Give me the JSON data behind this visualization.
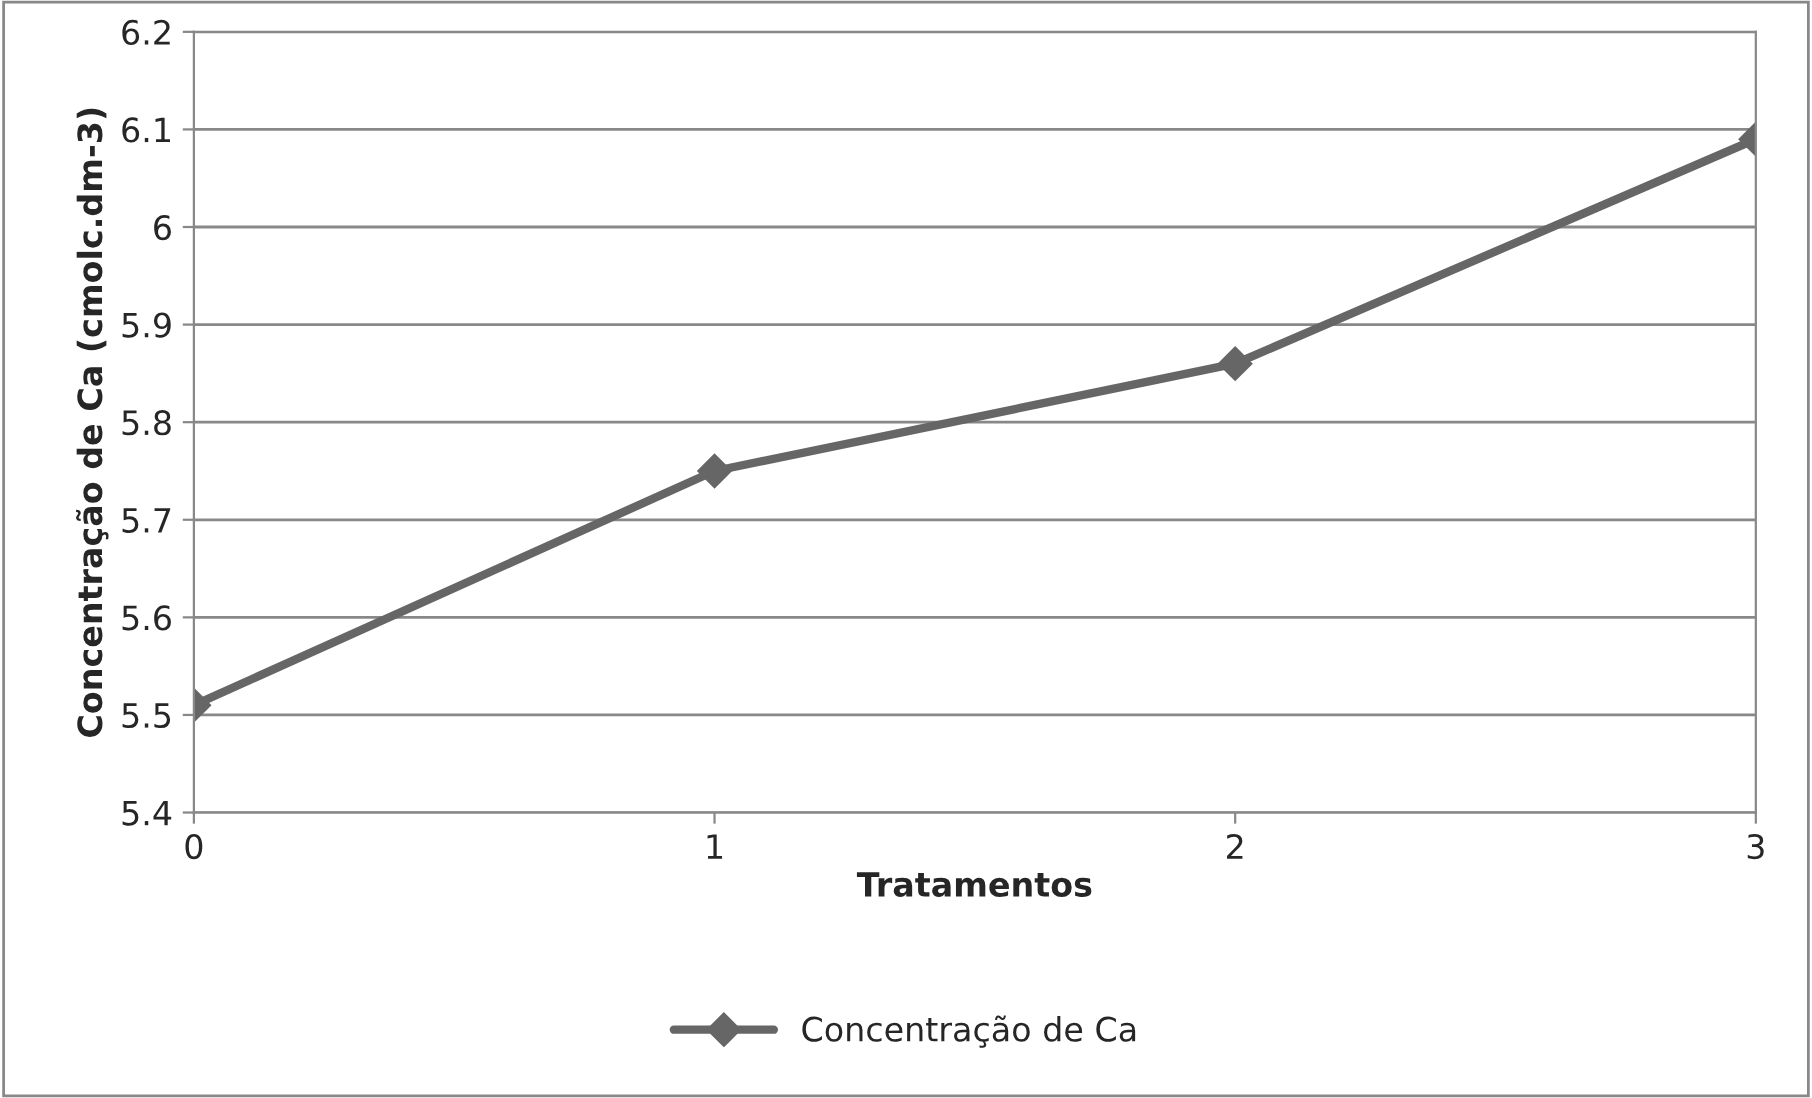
{
  "chart_data": {
    "type": "line",
    "xlabel": "Tratamentos",
    "ylabel": "Concentração de Ca (cmolc.dm-3)",
    "x": [
      0,
      1,
      2,
      3
    ],
    "series": [
      {
        "name": "Concentração de Ca",
        "color": "#666666",
        "values": [
          5.51,
          5.75,
          5.86,
          6.09
        ]
      }
    ],
    "xlim": [
      0,
      3
    ],
    "xticks": [
      0,
      1,
      2,
      3
    ],
    "ylim": [
      5.4,
      6.2
    ],
    "yticks": [
      5.4,
      5.5,
      5.6,
      5.7,
      5.8,
      5.9,
      6,
      6.1,
      6.2
    ],
    "grid": "y",
    "legend": "bottom",
    "marker": "diamond",
    "line_style": "solid"
  }
}
